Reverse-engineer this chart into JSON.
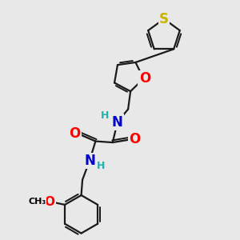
{
  "bg_color": "#e8e8e8",
  "atom_colors": {
    "S": "#c8b400",
    "O": "#ff0000",
    "N": "#0000cd",
    "H": "#20b2aa",
    "C": "#000000"
  },
  "bond_color": "#1a1a1a",
  "bond_width": 1.6,
  "font_size_atom": 11,
  "font_size_h": 9
}
